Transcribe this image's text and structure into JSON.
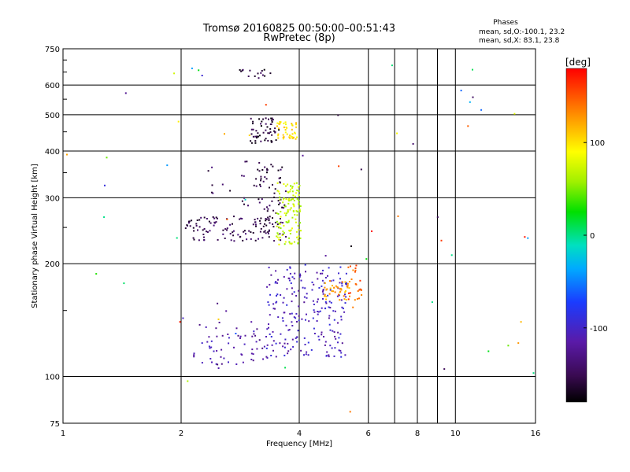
{
  "chart_data": {
    "type": "scatter",
    "title": "Tromsø 20160825 00:50:00–00:51:43",
    "subtitle": "RwPretec (8p)",
    "xlabel": "Frequency [MHz]",
    "ylabel": "Stationary phase Virtual Height [km]",
    "x_scale": "log",
    "y_scale": "log",
    "xlim": [
      1,
      16
    ],
    "ylim": [
      75,
      750
    ],
    "x_ticks": [
      1,
      2,
      4,
      6,
      8,
      10,
      16
    ],
    "x_tick_labels": [
      "1",
      "2",
      "4",
      "6",
      "8",
      "10",
      "16"
    ],
    "x_minor_ticks": [
      7,
      9
    ],
    "y_ticks": [
      75,
      100,
      200,
      300,
      400,
      500,
      600,
      750
    ],
    "y_tick_labels": [
      "75",
      "100",
      "200",
      "300",
      "400",
      "500",
      "600",
      "750"
    ],
    "grid": true,
    "stats": {
      "title": "Phases",
      "line1": "mean, sd,O:-100.1, 23.2",
      "line2": "mean, sd,X:  83.1, 23.8"
    },
    "colorbar": {
      "label": "[deg]",
      "range": [
        -180,
        180
      ],
      "ticks": [
        100,
        0,
        -100
      ],
      "tick_labels": [
        "100",
        "0",
        "-100"
      ],
      "colormap": "rainbow (black-purple-blue-cyan-green-yellow-red)"
    },
    "clusters": [
      {
        "x": [
          2.15,
          3.3
        ],
        "y": [
          105,
          140
        ],
        "phase": -115,
        "n": 60
      },
      {
        "x": [
          3.3,
          5.3
        ],
        "y": [
          112,
          200
        ],
        "phase": -105,
        "n": 230
      },
      {
        "x": [
          4.6,
          5.4
        ],
        "y": [
          160,
          180
        ],
        "phase": 125,
        "n": 40
      },
      {
        "x": [
          5.3,
          5.8
        ],
        "y": [
          150,
          200
        ],
        "phase": 150,
        "n": 25
      },
      {
        "x": [
          2.05,
          3.7
        ],
        "y": [
          230,
          268
        ],
        "phase": -150,
        "n": 110
      },
      {
        "x": [
          3.1,
          3.7
        ],
        "y": [
          250,
          370
        ],
        "phase": -155,
        "n": 60
      },
      {
        "x": [
          2.3,
          3.2
        ],
        "y": [
          285,
          380
        ],
        "phase": -150,
        "n": 20
      },
      {
        "x": [
          3.5,
          4.05
        ],
        "y": [
          225,
          330
        ],
        "phase": 70,
        "n": 120
      },
      {
        "x": [
          3.0,
          3.55
        ],
        "y": [
          420,
          490
        ],
        "phase": -160,
        "n": 55
      },
      {
        "x": [
          3.5,
          3.95
        ],
        "y": [
          430,
          480
        ],
        "phase": 100,
        "n": 45
      },
      {
        "x": [
          2.8,
          3.4
        ],
        "y": [
          625,
          660
        ],
        "phase": -160,
        "n": 15
      },
      {
        "x": [
          1.0,
          16.0
        ],
        "y": [
          80,
          700
        ],
        "phase": 0,
        "n": 60
      }
    ]
  }
}
